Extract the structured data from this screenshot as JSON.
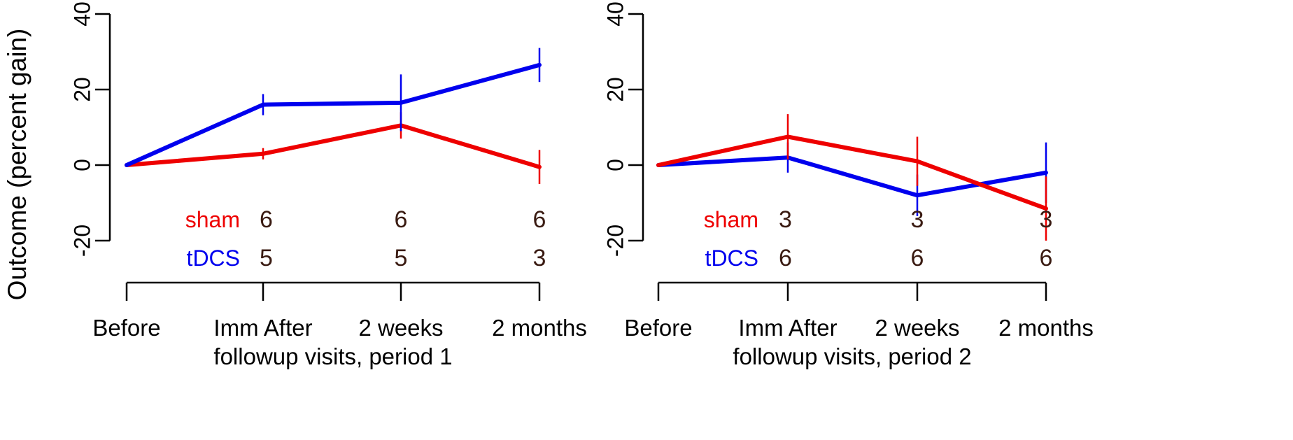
{
  "colors": {
    "sham": "#ee0000",
    "tdcs": "#0000ee",
    "axis": "#000000",
    "count": "#3a1b12"
  },
  "ylabel": "Outcome (percent gain)",
  "chart_data": [
    {
      "type": "line",
      "xlabel": "followup visits, period 1",
      "ylabel": "Outcome (percent gain)",
      "categories": [
        "Before",
        "Imm After",
        "2 weeks",
        "2 months"
      ],
      "ylim": [
        -20,
        40
      ],
      "yticks": [
        -20,
        0,
        20,
        40
      ],
      "series": [
        {
          "key": "sham",
          "name": "sham",
          "values": [
            0,
            3,
            10.5,
            -0.5
          ],
          "err": [
            0,
            1.5,
            3.5,
            4.5
          ],
          "counts": [
            "6",
            "6",
            "6"
          ]
        },
        {
          "key": "tdcs",
          "name": "tDCS",
          "values": [
            0,
            16,
            16.5,
            26.5
          ],
          "err": [
            0,
            2.8,
            7.5,
            4.5
          ],
          "counts": [
            "5",
            "5",
            "3"
          ]
        }
      ]
    },
    {
      "type": "line",
      "xlabel": "followup visits, period 2",
      "ylabel": "",
      "categories": [
        "Before",
        "Imm After",
        "2 weeks",
        "2 months"
      ],
      "ylim": [
        -20,
        40
      ],
      "yticks": [
        -20,
        0,
        20,
        40
      ],
      "series": [
        {
          "key": "tdcs",
          "name": "tDCS",
          "values": [
            0,
            2,
            -8,
            -2
          ],
          "err": [
            0,
            4,
            5.5,
            8
          ],
          "counts": [
            "6",
            "6",
            "6"
          ]
        },
        {
          "key": "sham",
          "name": "sham",
          "values": [
            0,
            7.5,
            1,
            -11.5
          ],
          "err": [
            0,
            6,
            6.5,
            8.5
          ],
          "counts": [
            "3",
            "3",
            "3"
          ]
        }
      ]
    }
  ]
}
